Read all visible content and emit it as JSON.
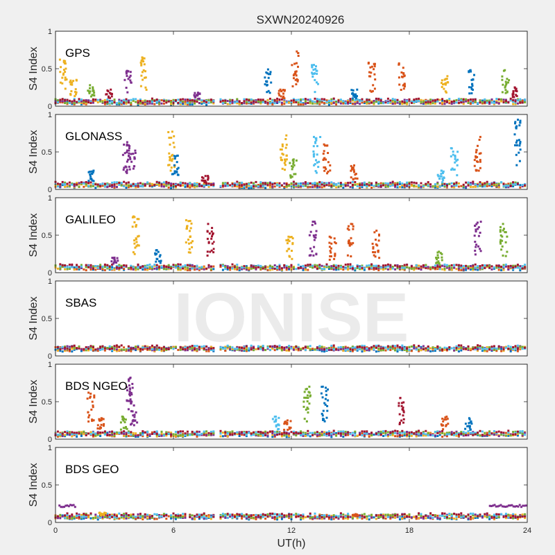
{
  "chart_data": {
    "type": "scatter",
    "title": "SXWN20240926",
    "xlabel": "UT(h)",
    "ylabel": "S4 Index",
    "xlim": [
      0,
      24
    ],
    "ylim": [
      0,
      1
    ],
    "xticks": [
      "0",
      "6",
      "12",
      "18",
      "24"
    ],
    "yticks": [
      "0",
      "0.5",
      "1"
    ],
    "watermark": "IONISE",
    "data_gap_hours": [
      8.1,
      8.3
    ],
    "colors": [
      "#0072BD",
      "#D95319",
      "#EDB120",
      "#7E2F8E",
      "#77AC30",
      "#4DBEEE",
      "#A2142F"
    ],
    "panels": [
      {
        "label": "GPS",
        "baseline": 0.06,
        "spikes": [
          {
            "x": 0.4,
            "y": 0.62,
            "series": 2
          },
          {
            "x": 0.9,
            "y": 0.35,
            "series": 2
          },
          {
            "x": 1.8,
            "y": 0.28,
            "series": 4
          },
          {
            "x": 2.7,
            "y": 0.22,
            "series": 6
          },
          {
            "x": 3.7,
            "y": 0.47,
            "series": 3
          },
          {
            "x": 4.5,
            "y": 0.65,
            "series": 2
          },
          {
            "x": 7.2,
            "y": 0.18,
            "series": 3
          },
          {
            "x": 10.8,
            "y": 0.49,
            "series": 0
          },
          {
            "x": 11.5,
            "y": 0.22,
            "series": 1
          },
          {
            "x": 12.2,
            "y": 0.73,
            "series": 1
          },
          {
            "x": 13.2,
            "y": 0.55,
            "series": 5
          },
          {
            "x": 15.2,
            "y": 0.22,
            "series": 0
          },
          {
            "x": 16.1,
            "y": 0.58,
            "series": 1
          },
          {
            "x": 17.6,
            "y": 0.57,
            "series": 1
          },
          {
            "x": 19.8,
            "y": 0.4,
            "series": 2
          },
          {
            "x": 21.2,
            "y": 0.48,
            "series": 0
          },
          {
            "x": 22.9,
            "y": 0.48,
            "series": 4
          },
          {
            "x": 23.3,
            "y": 0.25,
            "series": 6
          }
        ]
      },
      {
        "label": "GLONASS",
        "baseline": 0.06,
        "spikes": [
          {
            "x": 1.8,
            "y": 0.25,
            "series": 0
          },
          {
            "x": 3.6,
            "y": 0.63,
            "series": 3
          },
          {
            "x": 3.9,
            "y": 0.55,
            "series": 3
          },
          {
            "x": 5.9,
            "y": 0.77,
            "series": 2
          },
          {
            "x": 6.1,
            "y": 0.45,
            "series": 0
          },
          {
            "x": 7.6,
            "y": 0.18,
            "series": 6
          },
          {
            "x": 11.6,
            "y": 0.72,
            "series": 2
          },
          {
            "x": 12.1,
            "y": 0.4,
            "series": 4
          },
          {
            "x": 13.3,
            "y": 0.7,
            "series": 5
          },
          {
            "x": 13.8,
            "y": 0.6,
            "series": 1
          },
          {
            "x": 15.2,
            "y": 0.32,
            "series": 1
          },
          {
            "x": 19.6,
            "y": 0.25,
            "series": 5
          },
          {
            "x": 20.3,
            "y": 0.55,
            "series": 5
          },
          {
            "x": 21.5,
            "y": 0.7,
            "series": 1
          },
          {
            "x": 23.5,
            "y": 0.93,
            "series": 0
          }
        ]
      },
      {
        "label": "GALILEO",
        "baseline": 0.07,
        "spikes": [
          {
            "x": 3.0,
            "y": 0.2,
            "series": 3
          },
          {
            "x": 4.1,
            "y": 0.75,
            "series": 2
          },
          {
            "x": 5.2,
            "y": 0.3,
            "series": 0
          },
          {
            "x": 6.8,
            "y": 0.7,
            "series": 2
          },
          {
            "x": 7.9,
            "y": 0.65,
            "series": 6
          },
          {
            "x": 11.9,
            "y": 0.48,
            "series": 2
          },
          {
            "x": 13.1,
            "y": 0.68,
            "series": 3
          },
          {
            "x": 14.1,
            "y": 0.48,
            "series": 1
          },
          {
            "x": 15.0,
            "y": 0.65,
            "series": 1
          },
          {
            "x": 16.3,
            "y": 0.56,
            "series": 1
          },
          {
            "x": 19.5,
            "y": 0.28,
            "series": 4
          },
          {
            "x": 21.5,
            "y": 0.68,
            "series": 3
          },
          {
            "x": 22.8,
            "y": 0.65,
            "series": 4
          }
        ]
      },
      {
        "label": "SBAS",
        "baseline": 0.1,
        "spikes": []
      },
      {
        "label": "BDS NGEO",
        "baseline": 0.07,
        "spikes": [
          {
            "x": 1.8,
            "y": 0.62,
            "series": 1
          },
          {
            "x": 2.3,
            "y": 0.28,
            "series": 1
          },
          {
            "x": 3.5,
            "y": 0.3,
            "series": 4
          },
          {
            "x": 3.8,
            "y": 0.82,
            "series": 3
          },
          {
            "x": 4.0,
            "y": 0.5,
            "series": 3
          },
          {
            "x": 11.2,
            "y": 0.3,
            "series": 5
          },
          {
            "x": 11.8,
            "y": 0.25,
            "series": 1
          },
          {
            "x": 12.8,
            "y": 0.7,
            "series": 4
          },
          {
            "x": 13.7,
            "y": 0.7,
            "series": 0
          },
          {
            "x": 17.6,
            "y": 0.55,
            "series": 6
          },
          {
            "x": 19.8,
            "y": 0.3,
            "series": 1
          },
          {
            "x": 21.0,
            "y": 0.28,
            "series": 0
          }
        ]
      },
      {
        "label": "BDS GEO",
        "baseline": 0.08,
        "plateaus": [
          {
            "x0": 0.2,
            "x1": 1.0,
            "y": 0.22,
            "series": 3
          },
          {
            "x0": 22.1,
            "x1": 24.0,
            "y": 0.22,
            "series": 3
          }
        ],
        "spikes": [
          {
            "x": 2.4,
            "y": 0.13,
            "series": 2
          },
          {
            "x": 15.3,
            "y": 0.11,
            "series": 1
          }
        ]
      }
    ]
  }
}
